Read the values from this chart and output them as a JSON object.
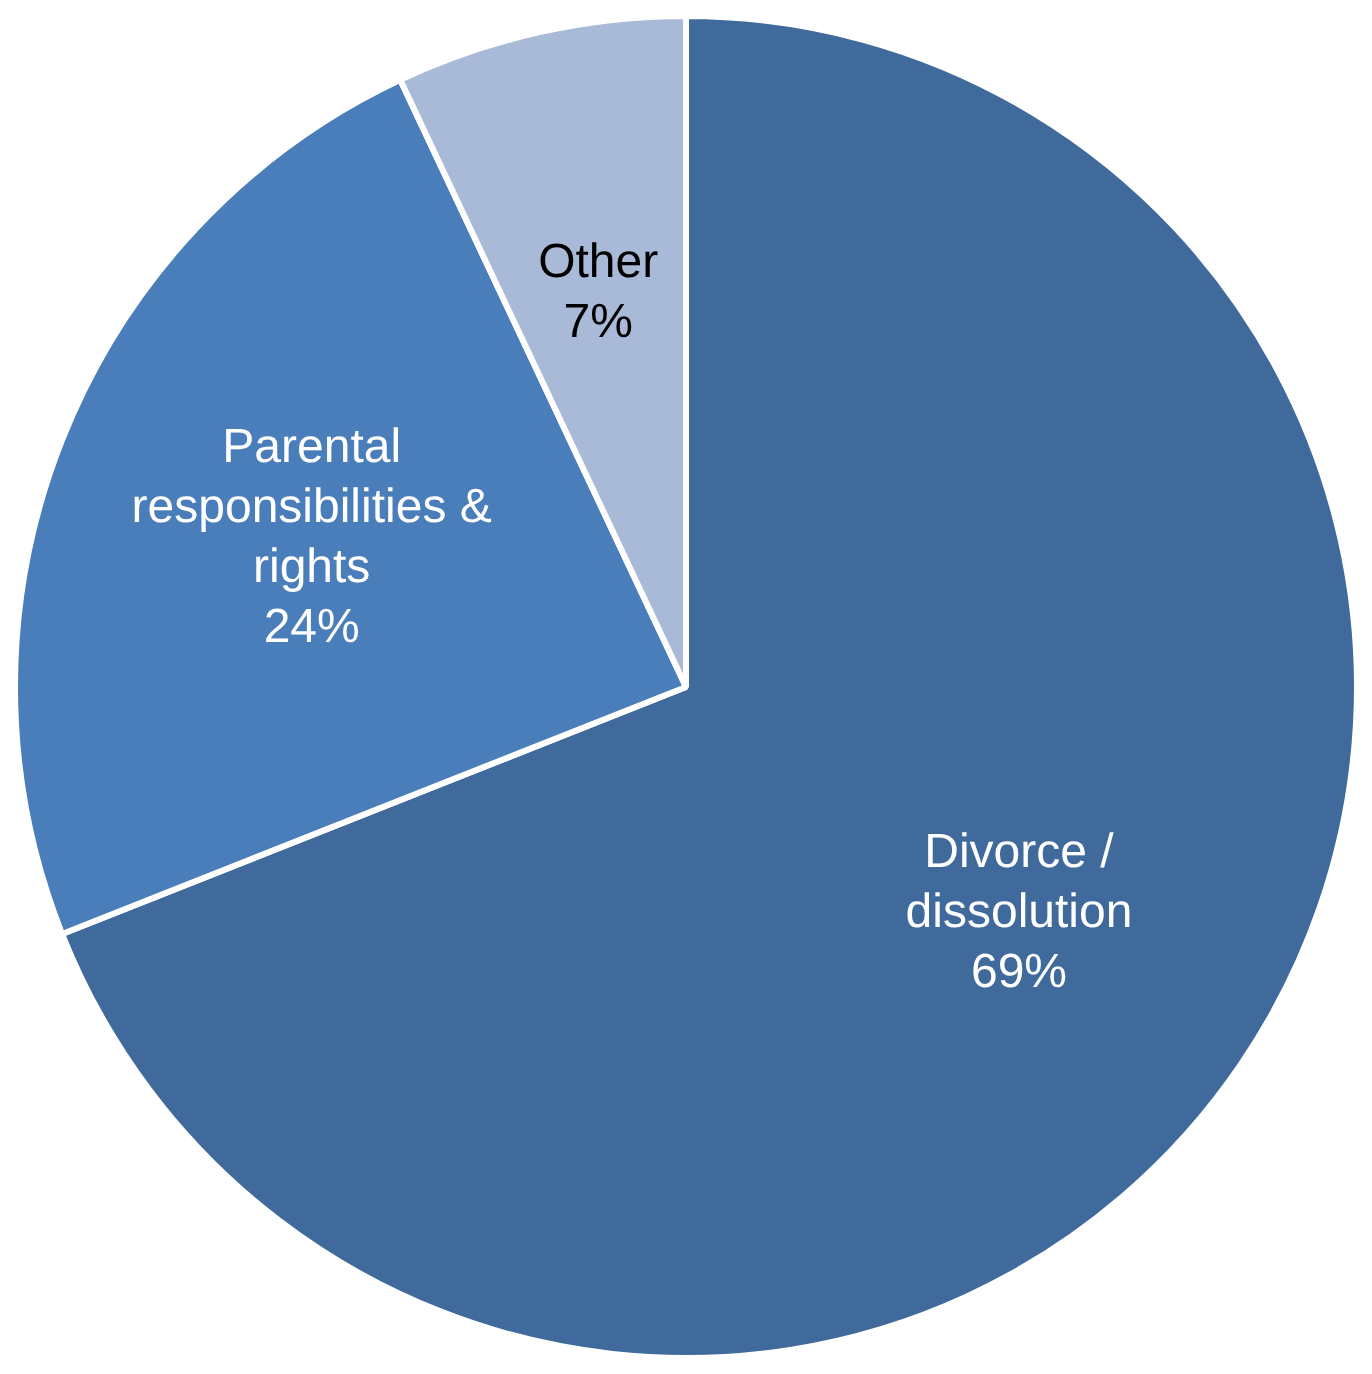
{
  "chart_data": {
    "type": "pie",
    "categories": [
      "Divorce / dissolution",
      "Parental responsibilities & rights",
      "Other"
    ],
    "values": [
      69,
      24,
      7
    ],
    "colors": [
      "#406a9b",
      "#4a7ebb",
      "#a9b9d8"
    ],
    "value_labels": [
      "69%",
      "24%",
      "7%"
    ],
    "legend": false
  }
}
